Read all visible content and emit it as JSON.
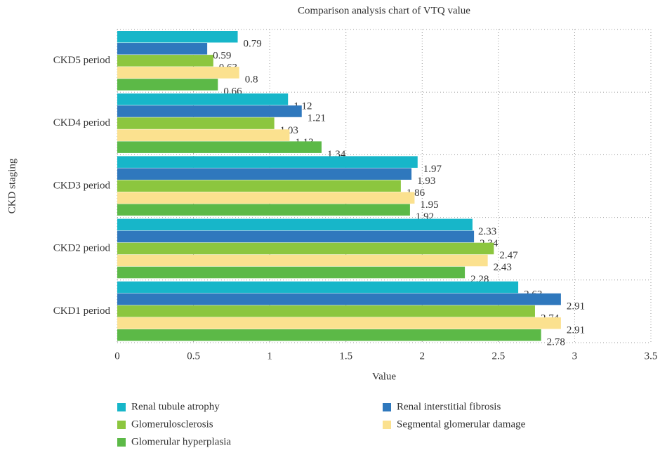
{
  "chart_data": {
    "type": "hbar",
    "title": "Comparison analysis chart of VTQ value",
    "x_label": "Value",
    "y_label": "CKD staging",
    "categories": [
      "CKD5 period",
      "CKD4 period",
      "CKD3 period",
      "CKD2 period",
      "CKD1 period"
    ],
    "series": [
      {
        "name": "Renal tubule atrophy",
        "color": "#17b6c9",
        "values": [
          0.79,
          1.12,
          1.97,
          2.33,
          2.63
        ]
      },
      {
        "name": "Renal interstitial fibrosis",
        "color": "#2f78bd",
        "values": [
          0.59,
          1.21,
          1.93,
          2.34,
          2.91
        ]
      },
      {
        "name": "Glomerulosclerosis",
        "color": "#8cc63f",
        "values": [
          0.63,
          1.03,
          1.86,
          2.47,
          2.74
        ]
      },
      {
        "name": "Segmental glomerular damage",
        "color": "#fbe18f",
        "values": [
          0.8,
          1.13,
          1.95,
          2.43,
          2.91
        ]
      },
      {
        "name": "Glomerular hyperplasia",
        "color": "#5cb947",
        "values": [
          0.66,
          1.34,
          1.92,
          2.28,
          2.78
        ]
      }
    ],
    "xlim": [
      0,
      3.5
    ],
    "xticks": [
      0,
      0.5,
      1,
      1.5,
      2,
      2.5,
      3,
      3.5
    ],
    "grid": true
  }
}
